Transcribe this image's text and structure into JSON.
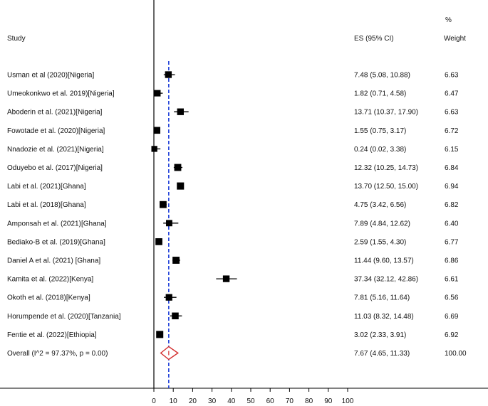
{
  "chart_data": {
    "type": "forest",
    "columns": {
      "study": "Study",
      "es": "ES (95% CI)",
      "weight_top": "%",
      "weight": "Weight"
    },
    "studies": [
      {
        "label": "Usman et al (2020)[Nigeria]",
        "es": 7.48,
        "lo": 5.08,
        "hi": 10.88,
        "es_text": "7.48 (5.08, 10.88)",
        "weight": "6.63"
      },
      {
        "label": "Umeokonkwo et al. 2019)[Nigeria]",
        "es": 1.82,
        "lo": 0.71,
        "hi": 4.58,
        "es_text": "1.82 (0.71, 4.58)",
        "weight": "6.47"
      },
      {
        "label": "Aboderin et al. (2021)[Nigeria]",
        "es": 13.71,
        "lo": 10.37,
        "hi": 17.9,
        "es_text": "13.71 (10.37, 17.90)",
        "weight": "6.63"
      },
      {
        "label": "Fowotade et al. (2020)[Nigeria]",
        "es": 1.55,
        "lo": 0.75,
        "hi": 3.17,
        "es_text": "1.55 (0.75, 3.17)",
        "weight": "6.72"
      },
      {
        "label": "Nnadozie et al. (2021)[Nigeria]",
        "es": 0.24,
        "lo": 0.02,
        "hi": 3.38,
        "es_text": "0.24 (0.02, 3.38)",
        "weight": "6.15"
      },
      {
        "label": "Oduyebo et al. (2017)[Nigeria]",
        "es": 12.32,
        "lo": 10.25,
        "hi": 14.73,
        "es_text": "12.32 (10.25, 14.73)",
        "weight": "6.84"
      },
      {
        "label": "Labi et al. (2021)[Ghana]",
        "es": 13.7,
        "lo": 12.5,
        "hi": 15.0,
        "es_text": "13.70 (12.50, 15.00)",
        "weight": "6.94"
      },
      {
        "label": "Labi et al. (2018)[Ghana]",
        "es": 4.75,
        "lo": 3.42,
        "hi": 6.56,
        "es_text": "4.75 (3.42, 6.56)",
        "weight": "6.82"
      },
      {
        "label": "Amponsah et al. (2021)[Ghana]",
        "es": 7.89,
        "lo": 4.84,
        "hi": 12.62,
        "es_text": "7.89 (4.84, 12.62)",
        "weight": "6.40"
      },
      {
        "label": "Bediako-B et al. (2019)[Ghana]",
        "es": 2.59,
        "lo": 1.55,
        "hi": 4.3,
        "es_text": "2.59 (1.55, 4.30)",
        "weight": "6.77"
      },
      {
        "label": "Daniel A et al. (2021) [Ghana]",
        "es": 11.44,
        "lo": 9.6,
        "hi": 13.57,
        "es_text": "11.44 (9.60, 13.57)",
        "weight": "6.86"
      },
      {
        "label": "Kamita et al. (2022)[Kenya]",
        "es": 37.34,
        "lo": 32.12,
        "hi": 42.86,
        "es_text": "37.34 (32.12, 42.86)",
        "weight": "6.61"
      },
      {
        "label": "Okoth et al. (2018)[Kenya]",
        "es": 7.81,
        "lo": 5.16,
        "hi": 11.64,
        "es_text": "7.81 (5.16, 11.64)",
        "weight": "6.56"
      },
      {
        "label": "Horumpende et al. (2020)[Tanzania]",
        "es": 11.03,
        "lo": 8.32,
        "hi": 14.48,
        "es_text": "11.03 (8.32, 14.48)",
        "weight": "6.69"
      },
      {
        "label": "Fentie et al. (2022)[Ethiopia]",
        "es": 3.02,
        "lo": 2.33,
        "hi": 3.91,
        "es_text": "3.02 (2.33, 3.91)",
        "weight": "6.92"
      }
    ],
    "overall": {
      "label": "Overall  (I^2 = 97.37%, p = 0.00)",
      "es": 7.67,
      "lo": 4.65,
      "hi": 11.33,
      "es_text": "7.67 (4.65, 11.33)",
      "weight": "100.00"
    },
    "x_ticks": [
      0,
      10,
      20,
      30,
      40,
      50,
      60,
      70,
      80,
      90,
      100
    ],
    "x_range": [
      0,
      100
    ],
    "colors": {
      "marker": "#000000",
      "overall_diamond": "#d32f2f",
      "overall_line": "#1f3fd9",
      "axis": "#000000"
    }
  }
}
